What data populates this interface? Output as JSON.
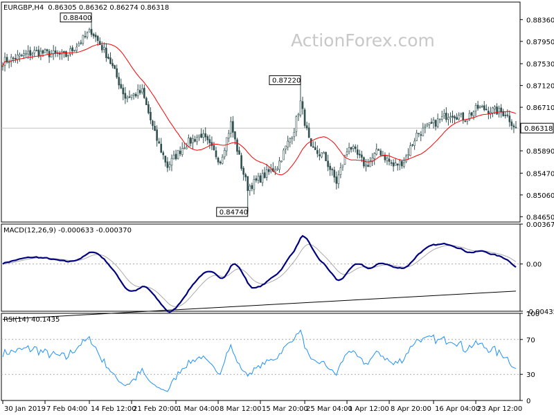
{
  "chart_data": [
    {
      "type": "candlestick",
      "title": "EURGBP,H4",
      "ohlc_text": "0.86305 0.86362 0.86274 0.86318",
      "watermark": "ActionForex.com",
      "ylim": [
        0.8455,
        0.8869
      ],
      "y_ticks": [
        "0.88360",
        "0.87950",
        "0.87530",
        "0.87120",
        "0.86710",
        "0.85890",
        "0.85470",
        "0.85060",
        "0.84650"
      ],
      "y_tick_values": [
        0.8836,
        0.8795,
        0.8753,
        0.8712,
        0.8671,
        0.8589,
        0.8547,
        0.8506,
        0.8465
      ],
      "current_price": 0.86318,
      "current_price_label": "0.86318",
      "callouts": [
        {
          "label": "0.88400",
          "value": 0.884,
          "bar": 42
        },
        {
          "label": "0.87220",
          "value": 0.8722,
          "bar": 141
        },
        {
          "label": "0.84740",
          "value": 0.8474,
          "bar": 116
        }
      ],
      "close_anchors": [
        [
          0,
          0.8757
        ],
        [
          15,
          0.8775
        ],
        [
          30,
          0.8768
        ],
        [
          42,
          0.8815
        ],
        [
          50,
          0.8765
        ],
        [
          58,
          0.869
        ],
        [
          66,
          0.87
        ],
        [
          72,
          0.862
        ],
        [
          78,
          0.856
        ],
        [
          86,
          0.86
        ],
        [
          94,
          0.862
        ],
        [
          103,
          0.857
        ],
        [
          108,
          0.864
        ],
        [
          113,
          0.856
        ],
        [
          116,
          0.852
        ],
        [
          123,
          0.854
        ],
        [
          130,
          0.856
        ],
        [
          138,
          0.863
        ],
        [
          141,
          0.868
        ],
        [
          146,
          0.859
        ],
        [
          152,
          0.858
        ],
        [
          158,
          0.853
        ],
        [
          164,
          0.86
        ],
        [
          172,
          0.856
        ],
        [
          178,
          0.859
        ],
        [
          185,
          0.856
        ],
        [
          190,
          0.857
        ],
        [
          196,
          0.862
        ],
        [
          204,
          0.864
        ],
        [
          212,
          0.866
        ],
        [
          219,
          0.865
        ],
        [
          225,
          0.867
        ],
        [
          232,
          0.8665
        ],
        [
          238,
          0.866
        ],
        [
          243,
          0.86318
        ]
      ],
      "ma_period": 20,
      "ma_color": "#ff0000",
      "bar_color": "#2f4f4f"
    },
    {
      "type": "line",
      "title": "MACD(12,26,9) -0.000633 -0.000370",
      "ylim": [
        -0.004359,
        0.003678
      ],
      "y_ticks": [
        "0.003678",
        "0.00",
        "-0.004359"
      ],
      "y_tick_values": [
        0.003678,
        0.0,
        -0.004359
      ],
      "trendline": [
        [
          -0.0047,
          -0.0051
        ],
        [
          243,
          -0.0025
        ]
      ],
      "series": [
        {
          "color": "#000080"
        },
        {
          "color": "#a9a9a9"
        }
      ]
    },
    {
      "type": "line",
      "title": "RSI(14) 40.1435",
      "ylim": [
        0,
        100
      ],
      "y_ticks": [
        "100",
        "70",
        "30",
        "0"
      ],
      "y_tick_values": [
        100,
        70,
        30,
        0
      ],
      "levels": [
        70,
        30
      ],
      "series": [
        {
          "color": "#1e90ff"
        }
      ]
    }
  ],
  "x_labels": [
    {
      "label": "30 Jan 2019",
      "bar": 0
    },
    {
      "label": "7 Feb 04:00",
      "bar": 20
    },
    {
      "label": "14 Feb 12:00",
      "bar": 41
    },
    {
      "label": "21 Feb 20:00",
      "bar": 61
    },
    {
      "label": "1 Mar 04:00",
      "bar": 82
    },
    {
      "label": "8 Mar 12:00",
      "bar": 102
    },
    {
      "label": "15 Mar 20:00",
      "bar": 122
    },
    {
      "label": "25 Mar 04:00",
      "bar": 143
    },
    {
      "label": "1 Apr 12:00",
      "bar": 163
    },
    {
      "label": "8 Apr 20:00",
      "bar": 183
    },
    {
      "label": "16 Apr 04:00",
      "bar": 204
    },
    {
      "label": "23 Apr 12:00",
      "bar": 224
    }
  ],
  "bar_count": 244
}
